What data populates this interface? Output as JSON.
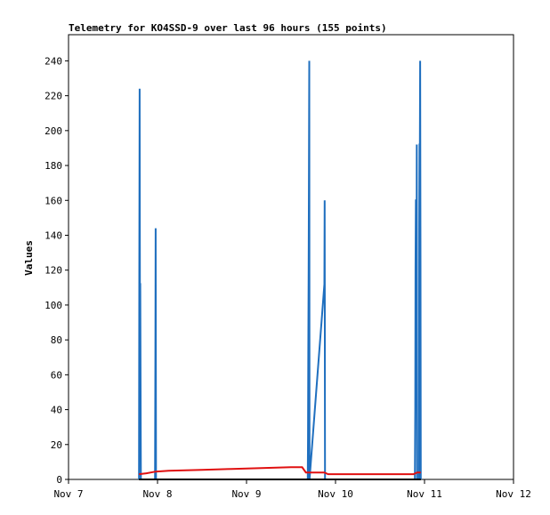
{
  "chart_data": {
    "type": "line",
    "title": "Telemetry for KO4SSD-9 over last 96 hours (155 points)",
    "xlabel": "",
    "ylabel": "Values",
    "x_axis": {
      "type": "date",
      "min": "Nov 7",
      "max": "Nov 12"
    },
    "ylim": [
      0,
      255
    ],
    "x_tick_labels": [
      "Nov 7",
      "Nov 8",
      "Nov 9",
      "Nov 10",
      "Nov 11",
      "Nov 12"
    ],
    "y_ticks": [
      0,
      20,
      40,
      60,
      80,
      100,
      120,
      140,
      160,
      180,
      200,
      220,
      240
    ],
    "grid": false,
    "legend": "none",
    "series": [
      {
        "color": "#1f6fbf",
        "points": [
          [
            "Nov 7 19:00",
            0
          ],
          [
            "Nov 7 19:05",
            112
          ],
          [
            "Nov 7 19:10",
            224
          ],
          [
            "Nov 7 19:15",
            112
          ],
          [
            "Nov 7 19:20",
            112
          ],
          [
            "Nov 7 19:30",
            0
          ],
          [
            "Nov 7 23:20",
            0
          ],
          [
            "Nov 7 23:25",
            72
          ],
          [
            "Nov 7 23:30",
            144
          ],
          [
            "Nov 7 23:35",
            0
          ],
          [
            "Nov 9 16:30",
            0
          ],
          [
            "Nov 9 16:35",
            24
          ],
          [
            "Nov 9 16:40",
            72
          ],
          [
            "Nov 9 16:45",
            120
          ],
          [
            "Nov 9 16:50",
            168
          ],
          [
            "Nov 9 16:55",
            240
          ],
          [
            "Nov 9 17:00",
            0
          ],
          [
            "Nov 9 21:00",
            112
          ],
          [
            "Nov 9 21:05",
            160
          ],
          [
            "Nov 9 21:10",
            0
          ],
          [
            "Nov 10 21:25",
            0
          ],
          [
            "Nov 10 21:30",
            40
          ],
          [
            "Nov 10 21:35",
            120
          ],
          [
            "Nov 10 21:40",
            160
          ],
          [
            "Nov 10 21:45",
            160
          ],
          [
            "Nov 10 21:50",
            96
          ],
          [
            "Nov 10 21:55",
            192
          ],
          [
            "Nov 10 22:00",
            0
          ],
          [
            "Nov 10 22:30",
            0
          ],
          [
            "Nov 10 22:35",
            144
          ],
          [
            "Nov 10 22:40",
            192
          ],
          [
            "Nov 10 22:45",
            192
          ],
          [
            "Nov 10 22:50",
            240
          ],
          [
            "Nov 10 22:55",
            120
          ],
          [
            "Nov 10 23:00",
            0
          ]
        ]
      },
      {
        "color": "#e01010",
        "points": [
          [
            "Nov 7 19:00",
            3
          ],
          [
            "Nov 7 21:00",
            3.5
          ],
          [
            "Nov 7 23:30",
            4.5
          ],
          [
            "Nov 8 03:00",
            5
          ],
          [
            "Nov 8 12:00",
            5.5
          ],
          [
            "Nov 8 20:00",
            6
          ],
          [
            "Nov 9 04:00",
            6.5
          ],
          [
            "Nov 9 12:00",
            7
          ],
          [
            "Nov 9 15:00",
            7
          ],
          [
            "Nov 9 16:00",
            4
          ],
          [
            "Nov 9 21:00",
            4
          ],
          [
            "Nov 9 22:00",
            3
          ],
          [
            "Nov 10 21:00",
            3
          ],
          [
            "Nov 10 22:00",
            4
          ],
          [
            "Nov 10 23:00",
            4
          ]
        ]
      },
      {
        "color": "#000000",
        "points": [
          [
            "Nov 7 19:00",
            0
          ],
          [
            "Nov 10 23:00",
            0
          ]
        ]
      }
    ]
  }
}
